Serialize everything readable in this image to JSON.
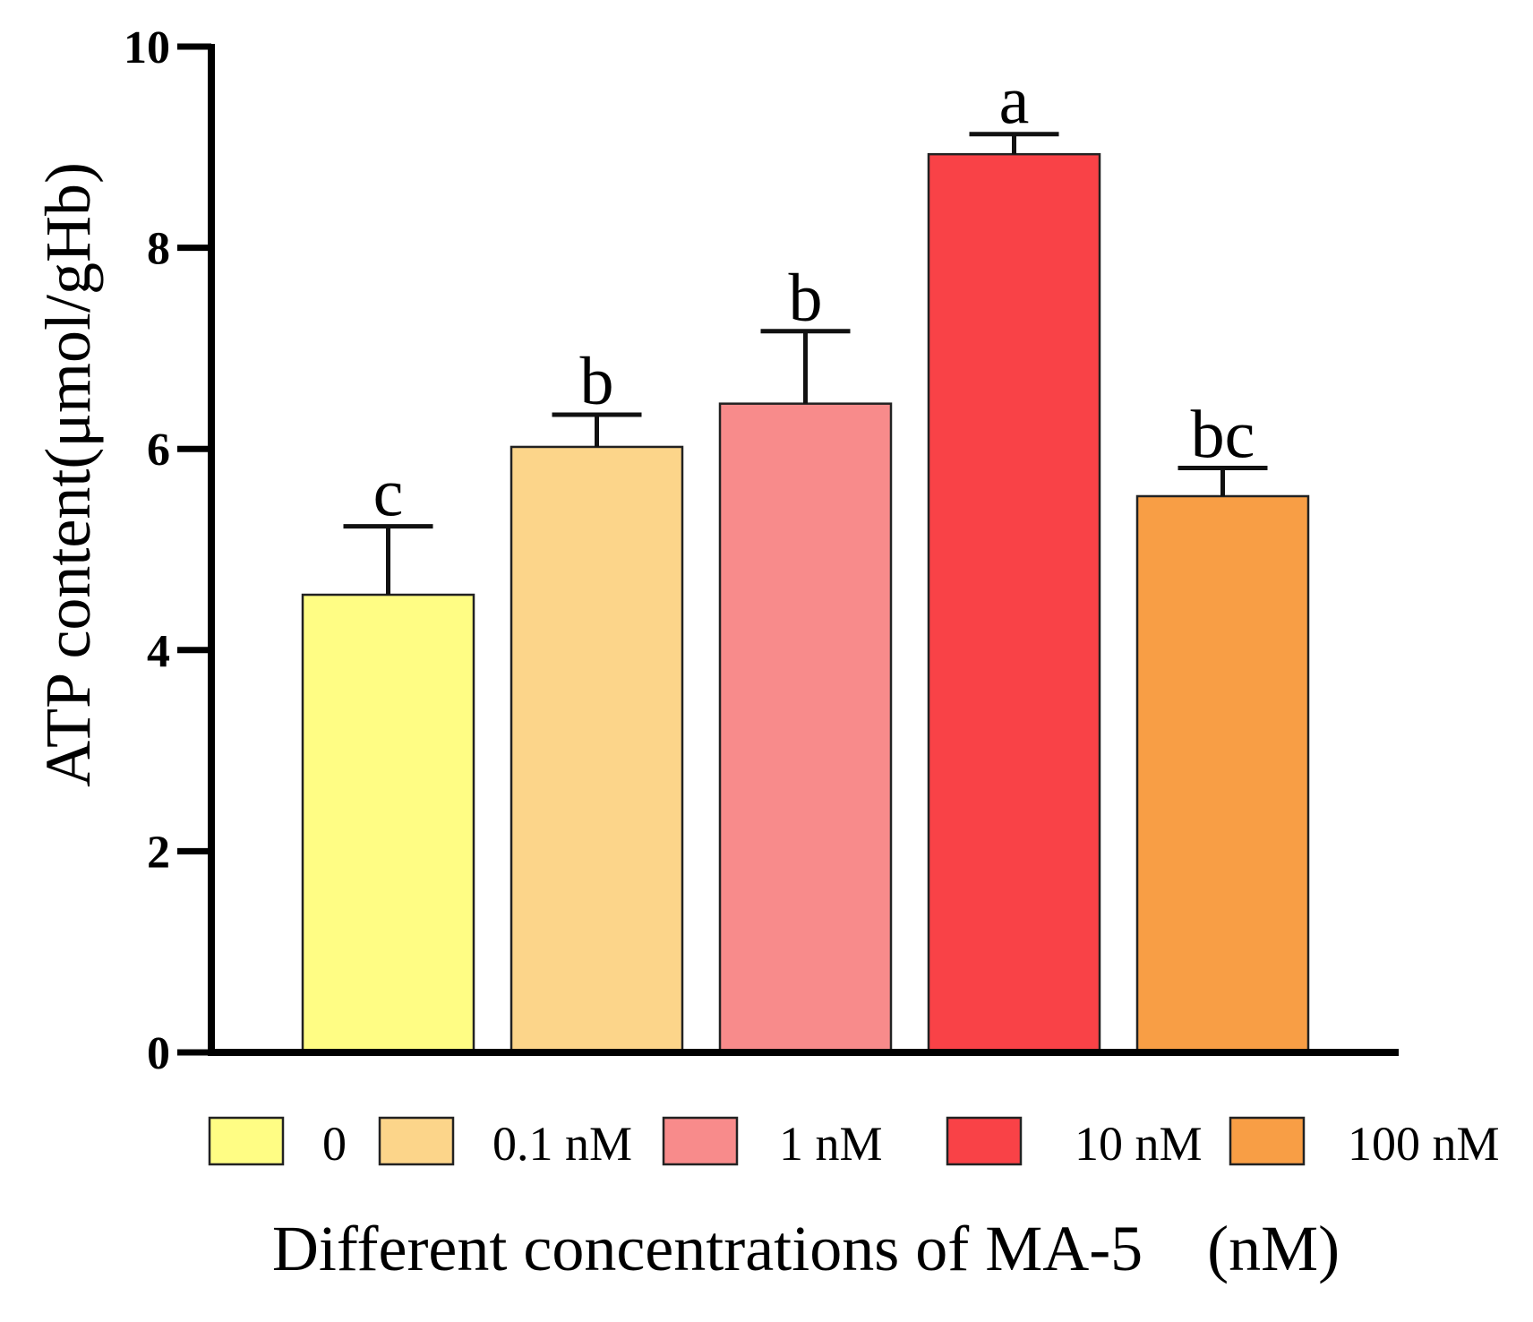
{
  "chart_data": {
    "type": "bar",
    "title": "",
    "xlabel": "Different concentrations of MA-5　(nM)",
    "ylabel": "ATP  content(μmol/gHb)",
    "ylim": [
      0,
      10
    ],
    "yticks": [
      "0",
      "2",
      "4",
      "6",
      "8",
      "10"
    ],
    "grid": false,
    "legend_position": "bottom",
    "categories": [
      "0",
      "0.1 nM",
      "1 nM",
      "10 nM",
      "100 nM"
    ],
    "values": [
      4.55,
      6.02,
      6.45,
      8.93,
      5.53
    ],
    "errors": [
      0.68,
      0.32,
      0.72,
      0.2,
      0.28
    ],
    "significance": [
      "c",
      "b",
      "b",
      "a",
      "bc"
    ],
    "colors": [
      "#FFFD84",
      "#FCD58A",
      "#F88B8B",
      "#F94247",
      "#F89E45"
    ]
  }
}
